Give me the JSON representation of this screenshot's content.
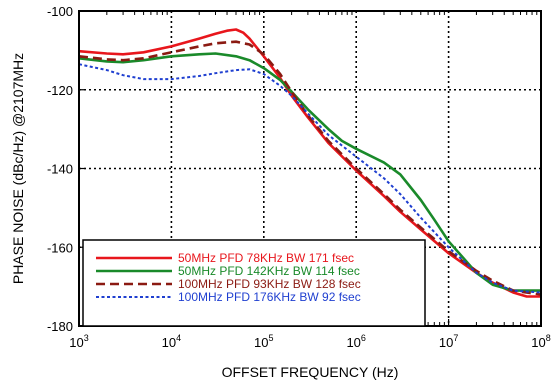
{
  "chart_data": {
    "type": "line",
    "xlabel": "OFFSET FREQUENCY (Hz)",
    "ylabel": "PHASE NOISE (dBc/Hz) @2107MHz",
    "x_scale": "log",
    "xlim": [
      1000,
      100000000
    ],
    "ylim": [
      -180,
      -100
    ],
    "grid": true,
    "x_ticks": [
      {
        "base": "10",
        "exp": "3",
        "value": 1000
      },
      {
        "base": "10",
        "exp": "4",
        "value": 10000
      },
      {
        "base": "10",
        "exp": "5",
        "value": 100000
      },
      {
        "base": "10",
        "exp": "6",
        "value": 1000000
      },
      {
        "base": "10",
        "exp": "7",
        "value": 10000000
      },
      {
        "base": "10",
        "exp": "8",
        "value": 100000000
      }
    ],
    "y_ticks": [
      {
        "label": "-100",
        "value": -100
      },
      {
        "label": "-120",
        "value": -120
      },
      {
        "label": "-140",
        "value": -140
      },
      {
        "label": "-160",
        "value": -160
      },
      {
        "label": "-180",
        "value": -180
      }
    ],
    "legend_position": "bottom-left",
    "series": [
      {
        "name": "50MHz PFD 78KHz BW  171 fsec",
        "color": "#e8161c",
        "style": "solid",
        "points": [
          [
            1000,
            -110.2
          ],
          [
            2000,
            -110.8
          ],
          [
            3000,
            -111
          ],
          [
            5000,
            -110.5
          ],
          [
            10000,
            -109
          ],
          [
            20000,
            -107
          ],
          [
            30000,
            -105.8
          ],
          [
            40000,
            -105
          ],
          [
            50000,
            -104.7
          ],
          [
            60000,
            -105.5
          ],
          [
            70000,
            -107
          ],
          [
            100000,
            -111.5
          ],
          [
            150000,
            -117
          ],
          [
            200000,
            -121.5
          ],
          [
            300000,
            -127
          ],
          [
            500000,
            -133.5
          ],
          [
            1000000,
            -140.5
          ],
          [
            2000000,
            -147
          ],
          [
            3000000,
            -151
          ],
          [
            5000000,
            -155.5
          ],
          [
            10000000,
            -161.5
          ],
          [
            20000000,
            -166.5
          ],
          [
            30000000,
            -169
          ],
          [
            50000000,
            -171.5
          ],
          [
            70000000,
            -172.5
          ],
          [
            100000000,
            -172.5
          ]
        ]
      },
      {
        "name": "50MHz PFD 142KHz BW 114 fsec",
        "color": "#1a8a2a",
        "style": "solid",
        "points": [
          [
            1000,
            -112
          ],
          [
            2000,
            -112.8
          ],
          [
            3000,
            -113
          ],
          [
            5000,
            -112.5
          ],
          [
            10000,
            -111.5
          ],
          [
            20000,
            -111
          ],
          [
            30000,
            -110.8
          ],
          [
            50000,
            -111.5
          ],
          [
            70000,
            -112.5
          ],
          [
            100000,
            -114.5
          ],
          [
            150000,
            -117.5
          ],
          [
            200000,
            -120.5
          ],
          [
            300000,
            -125
          ],
          [
            500000,
            -130
          ],
          [
            700000,
            -133
          ],
          [
            1000000,
            -135
          ],
          [
            2000000,
            -138.5
          ],
          [
            3000000,
            -141.5
          ],
          [
            5000000,
            -148
          ],
          [
            7000000,
            -153
          ],
          [
            10000000,
            -158.5
          ],
          [
            20000000,
            -166.5
          ],
          [
            30000000,
            -169.5
          ],
          [
            50000000,
            -171
          ],
          [
            100000000,
            -171
          ]
        ]
      },
      {
        "name": "100MHz PFD 93KHz BW 128 fsec",
        "color": "#8b1a12",
        "style": "dashed",
        "points": [
          [
            1000,
            -111.5
          ],
          [
            2000,
            -112.3
          ],
          [
            3000,
            -112.5
          ],
          [
            5000,
            -112
          ],
          [
            10000,
            -110.5
          ],
          [
            20000,
            -109
          ],
          [
            30000,
            -108.2
          ],
          [
            50000,
            -107.8
          ],
          [
            70000,
            -108.5
          ],
          [
            100000,
            -111
          ],
          [
            150000,
            -116
          ],
          [
            200000,
            -120.5
          ],
          [
            300000,
            -126.5
          ],
          [
            500000,
            -133
          ],
          [
            1000000,
            -140
          ],
          [
            2000000,
            -146.5
          ],
          [
            3000000,
            -150.5
          ],
          [
            5000000,
            -155
          ],
          [
            10000000,
            -161
          ],
          [
            20000000,
            -166
          ],
          [
            30000000,
            -168.5
          ],
          [
            50000000,
            -171
          ],
          [
            100000000,
            -172
          ]
        ]
      },
      {
        "name": "100MHz PFD 176KHz BW 92 fsec",
        "color": "#1f3fd0",
        "style": "dotted",
        "points": [
          [
            1000,
            -113.5
          ],
          [
            2000,
            -115
          ],
          [
            3000,
            -116.3
          ],
          [
            5000,
            -117.3
          ],
          [
            10000,
            -117.3
          ],
          [
            20000,
            -116.5
          ],
          [
            30000,
            -115.8
          ],
          [
            50000,
            -115
          ],
          [
            70000,
            -114.8
          ],
          [
            100000,
            -116
          ],
          [
            150000,
            -119
          ],
          [
            200000,
            -121.5
          ],
          [
            300000,
            -126
          ],
          [
            500000,
            -131.5
          ],
          [
            1000000,
            -137
          ],
          [
            2000000,
            -142.5
          ],
          [
            3000000,
            -146.5
          ],
          [
            5000000,
            -152.5
          ],
          [
            10000000,
            -160
          ],
          [
            20000000,
            -166.5
          ],
          [
            30000000,
            -169
          ],
          [
            50000000,
            -171
          ],
          [
            100000000,
            -171.5
          ]
        ]
      }
    ]
  }
}
